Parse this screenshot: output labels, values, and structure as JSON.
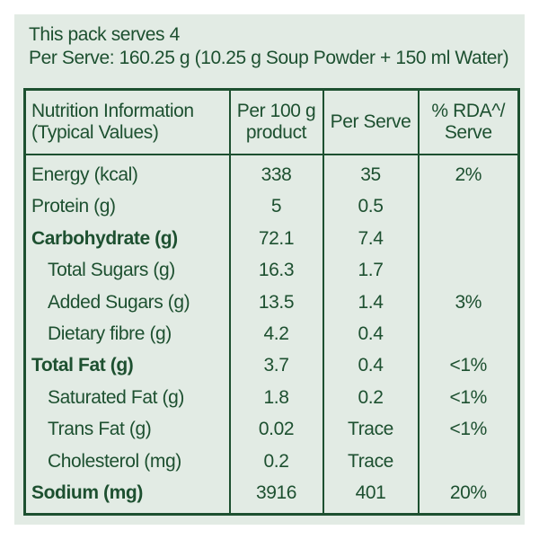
{
  "intro": {
    "line1": "This pack serves 4",
    "line2": "Per Serve: 160.25 g (10.25 g Soup Powder + 150 ml Water)"
  },
  "table": {
    "headers": {
      "name_line1": "Nutrition Information",
      "name_line2": "(Typical Values)",
      "per100_line1": "Per 100 g",
      "per100_line2": "product",
      "perserve": "Per Serve",
      "rda_line1": "% RDA^/",
      "rda_line2": "Serve"
    },
    "rows": [
      {
        "name": "Energy (kcal)",
        "per100": "338",
        "perserve": "35",
        "rda": "2%"
      },
      {
        "name": "Protein (g)",
        "per100": "5",
        "perserve": "0.5",
        "rda": ""
      },
      {
        "name": "Carbohydrate (g)",
        "per100": "72.1",
        "perserve": "7.4",
        "rda": ""
      },
      {
        "name": "Total Sugars (g)",
        "per100": "16.3",
        "perserve": "1.7",
        "rda": ""
      },
      {
        "name": "Added Sugars (g)",
        "per100": "13.5",
        "perserve": "1.4",
        "rda": "3%"
      },
      {
        "name": "Dietary fibre (g)",
        "per100": "4.2",
        "perserve": "0.4",
        "rda": ""
      },
      {
        "name": "Total Fat (g)",
        "per100": "3.7",
        "perserve": "0.4",
        "rda": "<1%"
      },
      {
        "name": "Saturated Fat (g)",
        "per100": "1.8",
        "perserve": "0.2",
        "rda": "<1%"
      },
      {
        "name": "Trans Fat (g)",
        "per100": "0.02",
        "perserve": "Trace",
        "rda": "<1%"
      },
      {
        "name": "Cholesterol (mg)",
        "per100": "0.2",
        "perserve": "Trace",
        "rda": ""
      },
      {
        "name": "Sodium (mg)",
        "per100": "3916",
        "perserve": "401",
        "rda": "20%"
      }
    ]
  },
  "colors": {
    "background": "#e2ebe4",
    "text": "#1d5030"
  }
}
